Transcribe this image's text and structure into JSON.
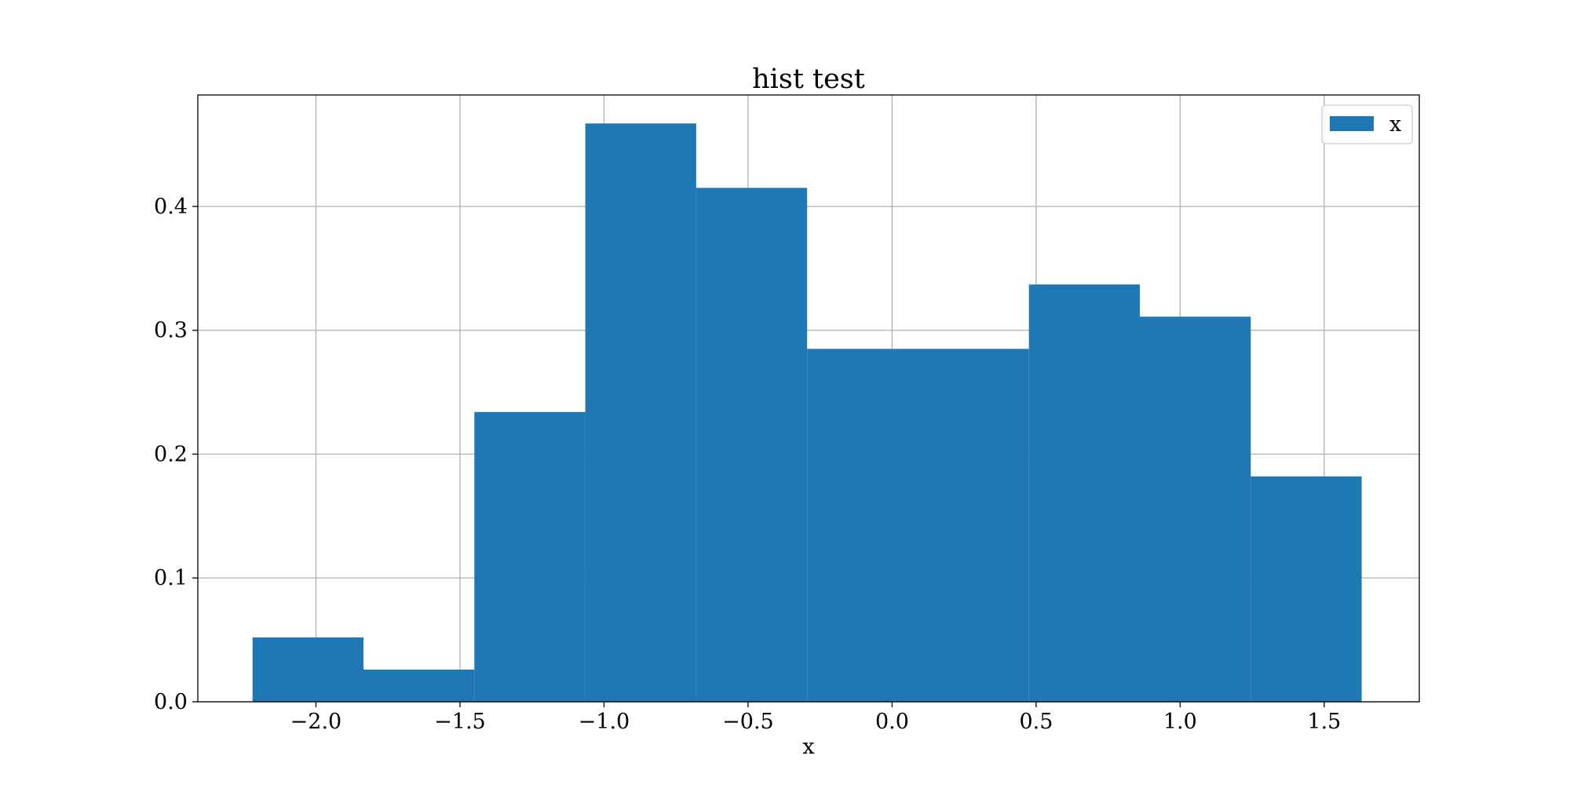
{
  "chart_data": {
    "type": "bar",
    "title": "hist test",
    "xlabel": "x",
    "ylabel": "",
    "xlim": [
      -2.41,
      1.83
    ],
    "ylim": [
      0,
      0.49
    ],
    "grid": true,
    "legend_position": "top-right",
    "color": "#1f77b4",
    "xticks": [
      -2.0,
      -1.5,
      -1.0,
      -0.5,
      0.0,
      0.5,
      1.0,
      1.5
    ],
    "xtick_labels": [
      "−2.0",
      "−1.5",
      "−1.0",
      "−0.5",
      "0.0",
      "0.5",
      "1.0",
      "1.5"
    ],
    "yticks": [
      0.0,
      0.1,
      0.2,
      0.3,
      0.4
    ],
    "ytick_labels": [
      "0.0",
      "0.1",
      "0.2",
      "0.3",
      "0.4"
    ],
    "bin_edges": [
      -2.22,
      -1.835,
      -1.45,
      -1.065,
      -0.68,
      -0.295,
      0.09,
      0.475,
      0.86,
      1.245,
      1.63
    ],
    "values": [
      0.052,
      0.026,
      0.234,
      0.467,
      0.415,
      0.285,
      0.285,
      0.337,
      0.311,
      0.182
    ],
    "series": [
      {
        "name": "x"
      }
    ]
  }
}
